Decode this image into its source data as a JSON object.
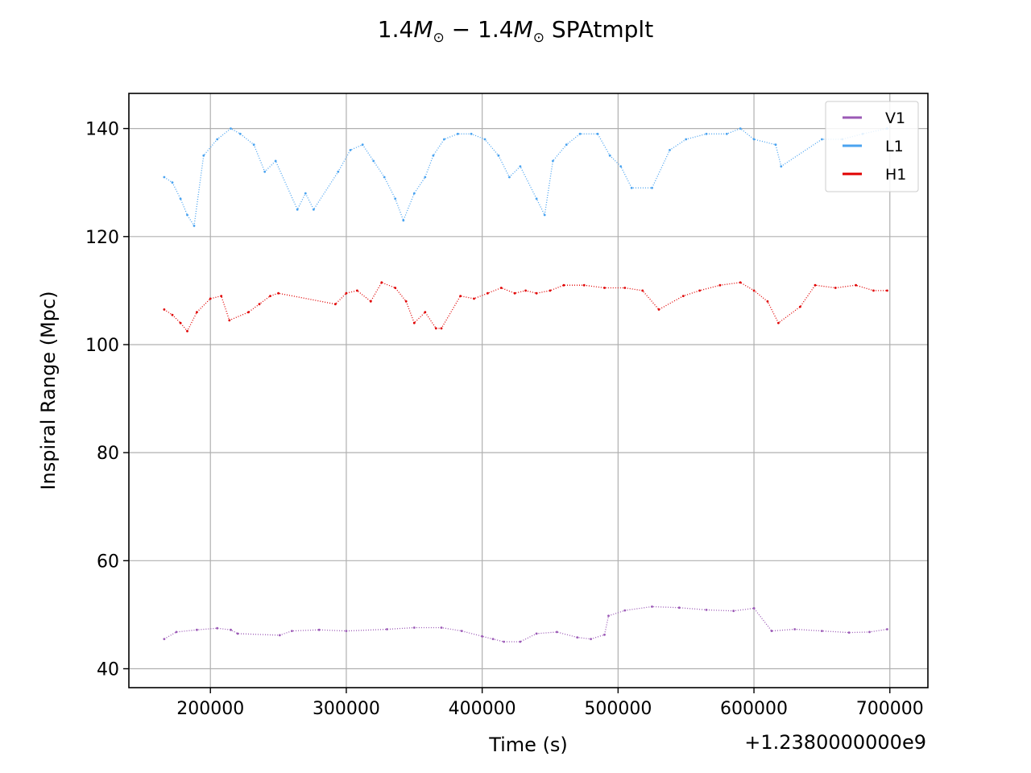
{
  "chart_data": {
    "type": "line",
    "title_prefix": "1.4",
    "title_mass": "M",
    "title_sub": "⊙",
    "title_minus": " − 1.4",
    "title_suffix": " SPAtmplt",
    "xlabel": "Time (s)",
    "ylabel": "Inspiral Range (Mpc)",
    "x_offset_label": "+1.2380000000e9",
    "xlim": [
      140000,
      728000
    ],
    "ylim": [
      36.5,
      146.5
    ],
    "xticks": [
      200000,
      300000,
      400000,
      500000,
      600000,
      700000
    ],
    "xtick_labels": [
      "200000",
      "300000",
      "400000",
      "500000",
      "600000",
      "700000"
    ],
    "yticks": [
      40,
      60,
      80,
      100,
      120,
      140
    ],
    "ytick_labels": [
      "40",
      "60",
      "80",
      "100",
      "120",
      "140"
    ],
    "grid": true,
    "legend_position": "top-right",
    "series": [
      {
        "name": "V1",
        "color": "#9b59b6",
        "points": [
          [
            166000,
            45.5
          ],
          [
            175000,
            46.8
          ],
          [
            190000,
            47.2
          ],
          [
            205000,
            47.5
          ],
          [
            215000,
            47.2
          ],
          [
            220000,
            46.5
          ],
          [
            251000,
            46.2
          ],
          [
            260000,
            47.0
          ],
          [
            280000,
            47.2
          ],
          [
            300000,
            47.0
          ],
          [
            330000,
            47.3
          ],
          [
            350000,
            47.6
          ],
          [
            370000,
            47.6
          ],
          [
            385000,
            47.0
          ],
          [
            400000,
            46.0
          ],
          [
            408000,
            45.5
          ],
          [
            416000,
            45.0
          ],
          [
            428000,
            45.0
          ],
          [
            440000,
            46.5
          ],
          [
            455000,
            46.8
          ],
          [
            470000,
            45.8
          ],
          [
            480000,
            45.5
          ],
          [
            490000,
            46.3
          ],
          [
            493000,
            49.8
          ],
          [
            505000,
            50.8
          ],
          [
            525000,
            51.5
          ],
          [
            545000,
            51.3
          ],
          [
            565000,
            50.9
          ],
          [
            585000,
            50.7
          ],
          [
            600000,
            51.2
          ],
          [
            613000,
            47.0
          ],
          [
            630000,
            47.3
          ],
          [
            650000,
            47.0
          ],
          [
            670000,
            46.7
          ],
          [
            685000,
            46.8
          ],
          [
            698000,
            47.3
          ]
        ]
      },
      {
        "name": "L1",
        "color": "#4aa3f0",
        "points": [
          [
            166000,
            131
          ],
          [
            172000,
            130
          ],
          [
            178000,
            127
          ],
          [
            183000,
            124
          ],
          [
            188000,
            122
          ],
          [
            195000,
            135
          ],
          [
            205000,
            138
          ],
          [
            215000,
            140
          ],
          [
            222000,
            139
          ],
          [
            232000,
            137
          ],
          [
            240000,
            132
          ],
          [
            248000,
            134
          ],
          [
            264000,
            125
          ],
          [
            270000,
            128
          ],
          [
            276000,
            125
          ],
          [
            294000,
            132
          ],
          [
            303000,
            136
          ],
          [
            312000,
            137
          ],
          [
            320000,
            134
          ],
          [
            328000,
            131
          ],
          [
            336000,
            127
          ],
          [
            342000,
            123
          ],
          [
            350000,
            128
          ],
          [
            358000,
            131
          ],
          [
            364000,
            135
          ],
          [
            372000,
            138
          ],
          [
            382000,
            139
          ],
          [
            392000,
            139
          ],
          [
            402000,
            138
          ],
          [
            412000,
            135
          ],
          [
            420000,
            131
          ],
          [
            428000,
            133
          ],
          [
            440000,
            127
          ],
          [
            446000,
            124
          ],
          [
            452000,
            134
          ],
          [
            462000,
            137
          ],
          [
            472000,
            139
          ],
          [
            485000,
            139
          ],
          [
            494000,
            135
          ],
          [
            502000,
            133
          ],
          [
            510000,
            129
          ],
          [
            525000,
            129
          ],
          [
            538000,
            136
          ],
          [
            550000,
            138
          ],
          [
            565000,
            139
          ],
          [
            580000,
            139
          ],
          [
            590000,
            140
          ],
          [
            600000,
            138
          ],
          [
            616000,
            137
          ],
          [
            620000,
            133
          ],
          [
            650000,
            138
          ],
          [
            665000,
            138
          ],
          [
            680000,
            139
          ],
          [
            698000,
            140
          ]
        ]
      },
      {
        "name": "H1",
        "color": "#e00000",
        "points": [
          [
            166000,
            106.5
          ],
          [
            172000,
            105.5
          ],
          [
            178000,
            104.0
          ],
          [
            183000,
            102.5
          ],
          [
            190000,
            106.0
          ],
          [
            200000,
            108.5
          ],
          [
            208000,
            109.0
          ],
          [
            214000,
            104.5
          ],
          [
            228000,
            106.0
          ],
          [
            236000,
            107.5
          ],
          [
            244000,
            109.0
          ],
          [
            250000,
            109.5
          ],
          [
            292000,
            107.5
          ],
          [
            300000,
            109.5
          ],
          [
            308000,
            110.0
          ],
          [
            318000,
            108.0
          ],
          [
            326000,
            111.5
          ],
          [
            336000,
            110.5
          ],
          [
            344000,
            108.0
          ],
          [
            350000,
            104.0
          ],
          [
            358000,
            106.0
          ],
          [
            366000,
            103.0
          ],
          [
            370000,
            103.0
          ],
          [
            384000,
            109.0
          ],
          [
            394000,
            108.5
          ],
          [
            404000,
            109.5
          ],
          [
            414000,
            110.5
          ],
          [
            424000,
            109.5
          ],
          [
            432000,
            110.0
          ],
          [
            440000,
            109.5
          ],
          [
            450000,
            110.0
          ],
          [
            460000,
            111.0
          ],
          [
            475000,
            111.0
          ],
          [
            490000,
            110.5
          ],
          [
            505000,
            110.5
          ],
          [
            518000,
            110.0
          ],
          [
            530000,
            106.5
          ],
          [
            548000,
            109.0
          ],
          [
            560000,
            110.0
          ],
          [
            575000,
            111.0
          ],
          [
            590000,
            111.5
          ],
          [
            600000,
            110.0
          ],
          [
            610000,
            108.0
          ],
          [
            618000,
            104.0
          ],
          [
            634000,
            107.0
          ],
          [
            645000,
            111.0
          ],
          [
            660000,
            110.5
          ],
          [
            675000,
            111.0
          ],
          [
            688000,
            110.0
          ],
          [
            698000,
            110.0
          ]
        ]
      }
    ]
  },
  "colors": {
    "background": "#ffffff",
    "grid": "#b0b0b0",
    "axes": "#000000"
  }
}
